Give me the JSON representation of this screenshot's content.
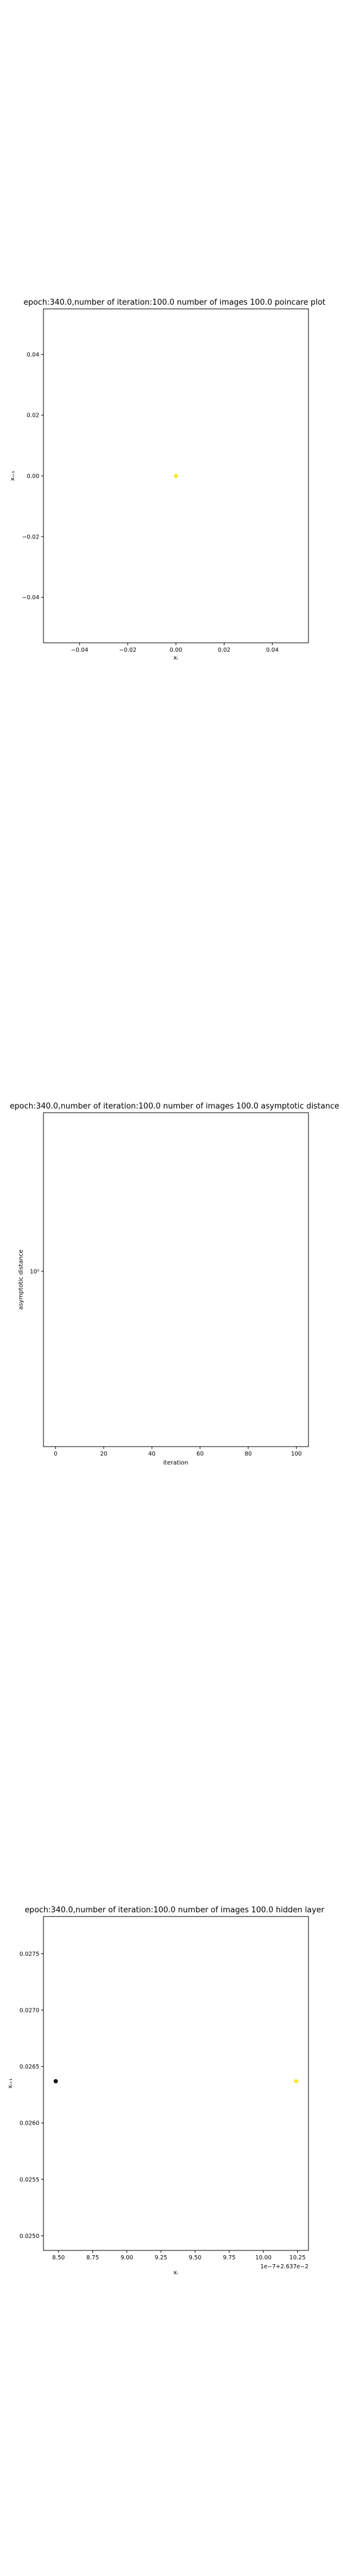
{
  "chart_data": [
    {
      "type": "scatter",
      "title": "epoch:340.0,number of iteration:100.0 number of images 100.0 poincare plot",
      "xlabel": "xᵢ",
      "ylabel": "xᵢ₊₁",
      "xlim": [
        -0.055,
        0.055
      ],
      "ylim": [
        -0.055,
        0.055
      ],
      "xticks": [
        -0.04,
        -0.02,
        0.0,
        0.02,
        0.04
      ],
      "xtick_labels": [
        "−0.04",
        "−0.02",
        "0.00",
        "0.02",
        "0.04"
      ],
      "yticks": [
        -0.04,
        -0.02,
        0.0,
        0.02,
        0.04
      ],
      "ytick_labels": [
        "−0.04",
        "−0.02",
        "0.00",
        "0.02",
        "0.04"
      ],
      "grid": false,
      "points": [
        {
          "x": 0.0,
          "y": 0.0,
          "color": "#fde725"
        }
      ]
    },
    {
      "type": "line",
      "title": "epoch:340.0,number of iteration:100.0  number of images 100.0 asymptotic distance",
      "xlabel": "iteration",
      "ylabel": "asymptotic distance",
      "xlim": [
        -5,
        105
      ],
      "yscale": "log",
      "ylim": [
        0.9,
        1.1
      ],
      "xticks": [
        0,
        20,
        40,
        60,
        80,
        100
      ],
      "xtick_labels": [
        "0",
        "20",
        "40",
        "60",
        "80",
        "100"
      ],
      "yticks": [
        1.0
      ],
      "ytick_labels": [
        "10⁰"
      ],
      "grid": false,
      "series": []
    },
    {
      "type": "scatter",
      "title": "epoch:340.0,number of iteration:100.0  number of images 100.0 hidden layer",
      "xlabel": "xᵢ",
      "ylabel": "xᵢ₊₁",
      "offset_text": "1e−7+2.637e−2",
      "xlim": [
        8.39,
        10.33
      ],
      "ylim": [
        0.02487,
        0.02783
      ],
      "xticks": [
        8.5,
        8.75,
        9.0,
        9.25,
        9.5,
        9.75,
        10.0,
        10.25
      ],
      "xtick_labels": [
        "8.50",
        "8.75",
        "9.00",
        "9.25",
        "9.50",
        "9.75",
        "10.00",
        "10.25"
      ],
      "yticks": [
        0.025,
        0.0255,
        0.026,
        0.0265,
        0.027,
        0.0275
      ],
      "ytick_labels": [
        "0.0250",
        "0.0255",
        "0.0260",
        "0.0265",
        "0.0270",
        "0.0275"
      ],
      "grid": false,
      "points": [
        {
          "x": 8.48,
          "y": 0.02637,
          "color": "#000000"
        },
        {
          "x": 10.24,
          "y": 0.02637,
          "color": "#fde725"
        }
      ]
    }
  ]
}
